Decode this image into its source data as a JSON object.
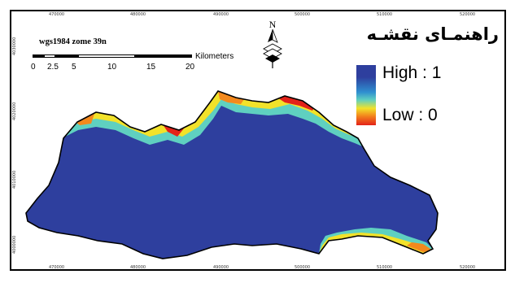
{
  "map": {
    "crs_label": "wgs1984 zome 39n",
    "scale_unit": "Kilometers",
    "scale_ticks": [
      "0",
      "2.5",
      "5",
      "10",
      "15",
      "20"
    ],
    "north_label": "N",
    "x_ticks_top": [
      "470000",
      "480000",
      "490000",
      "500000",
      "510000",
      "520000"
    ],
    "x_ticks_bottom": [
      "470000",
      "480000",
      "490000",
      "500000",
      "510000",
      "520000"
    ],
    "y_ticks": [
      "4030000",
      "4020000",
      "4010000",
      "4000000"
    ]
  },
  "legend": {
    "title": "راهنمـای نقشـه",
    "high_label": "High : 1",
    "low_label": "Low : 0",
    "colors": {
      "high": "#2e3f9e",
      "mid_light": "#5fd0c0",
      "mid": "#f2e22a",
      "low": "#e32219"
    }
  }
}
